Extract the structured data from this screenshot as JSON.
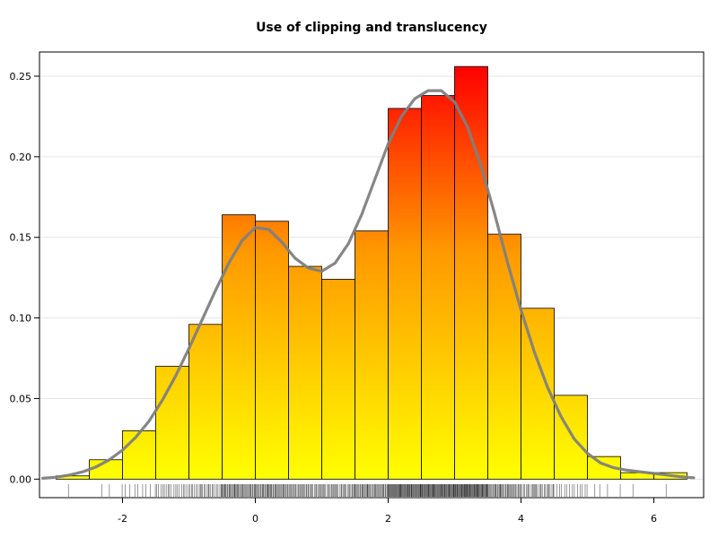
{
  "chart_data": {
    "type": "bar",
    "title": "Use of clipping and translucency",
    "xlabel": "",
    "ylabel": "",
    "xlim": [
      -3.25,
      6.75
    ],
    "ylim": [
      -0.0115,
      0.265
    ],
    "xticks": [
      -2,
      0,
      2,
      4,
      6
    ],
    "xtick_labels": [
      "-2",
      "0",
      "2",
      "4",
      "6"
    ],
    "yticks": [
      0.0,
      0.05,
      0.1,
      0.15,
      0.2,
      0.25
    ],
    "ytick_labels": [
      "0.00",
      "0.05",
      "0.10",
      "0.15",
      "0.20",
      "0.25"
    ],
    "grid": "horizontal",
    "bins": [
      {
        "x0": -3.0,
        "x1": -2.5,
        "density": 0.002
      },
      {
        "x0": -2.5,
        "x1": -2.0,
        "density": 0.012
      },
      {
        "x0": -2.0,
        "x1": -1.5,
        "density": 0.03
      },
      {
        "x0": -1.5,
        "x1": -1.0,
        "density": 0.07
      },
      {
        "x0": -1.0,
        "x1": -0.5,
        "density": 0.096
      },
      {
        "x0": -0.5,
        "x1": 0.0,
        "density": 0.164
      },
      {
        "x0": 0.0,
        "x1": 0.5,
        "density": 0.16
      },
      {
        "x0": 0.5,
        "x1": 1.0,
        "density": 0.132
      },
      {
        "x0": 1.0,
        "x1": 1.5,
        "density": 0.124
      },
      {
        "x0": 1.5,
        "x1": 2.0,
        "density": 0.154
      },
      {
        "x0": 2.0,
        "x1": 2.5,
        "density": 0.23
      },
      {
        "x0": 2.5,
        "x1": 3.0,
        "density": 0.238
      },
      {
        "x0": 3.0,
        "x1": 3.5,
        "density": 0.256
      },
      {
        "x0": 3.5,
        "x1": 4.0,
        "density": 0.152
      },
      {
        "x0": 4.0,
        "x1": 4.5,
        "density": 0.106
      },
      {
        "x0": 4.5,
        "x1": 5.0,
        "density": 0.052
      },
      {
        "x0": 5.0,
        "x1": 5.5,
        "density": 0.014
      },
      {
        "x0": 5.5,
        "x1": 6.0,
        "density": 0.004
      },
      {
        "x0": 6.0,
        "x1": 6.5,
        "density": 0.004
      }
    ],
    "density_curve": {
      "x": [
        -3.2,
        -3.0,
        -2.8,
        -2.6,
        -2.4,
        -2.2,
        -2.0,
        -1.8,
        -1.6,
        -1.4,
        -1.2,
        -1.0,
        -0.8,
        -0.6,
        -0.4,
        -0.2,
        0.0,
        0.2,
        0.4,
        0.6,
        0.8,
        1.0,
        1.2,
        1.4,
        1.6,
        1.8,
        2.0,
        2.2,
        2.4,
        2.6,
        2.8,
        3.0,
        3.2,
        3.4,
        3.6,
        3.8,
        4.0,
        4.2,
        4.4,
        4.6,
        4.8,
        5.0,
        5.2,
        5.4,
        5.6,
        5.8,
        6.0,
        6.2,
        6.4,
        6.6
      ],
      "y": [
        0.0005,
        0.0012,
        0.0025,
        0.0045,
        0.0075,
        0.012,
        0.018,
        0.026,
        0.036,
        0.049,
        0.064,
        0.081,
        0.099,
        0.117,
        0.134,
        0.148,
        0.156,
        0.155,
        0.147,
        0.137,
        0.131,
        0.129,
        0.134,
        0.146,
        0.164,
        0.186,
        0.208,
        0.225,
        0.236,
        0.241,
        0.241,
        0.234,
        0.218,
        0.194,
        0.165,
        0.134,
        0.105,
        0.079,
        0.057,
        0.039,
        0.025,
        0.016,
        0.01,
        0.007,
        0.0055,
        0.0045,
        0.0035,
        0.0025,
        0.0015,
        0.0008
      ]
    },
    "colors": {
      "bar_low": "#ffff00",
      "bar_high": "#ff0000",
      "bar_edge": "#000000",
      "curve": "#808080",
      "grid": "#e6e6e6",
      "rug": "#000000"
    }
  }
}
